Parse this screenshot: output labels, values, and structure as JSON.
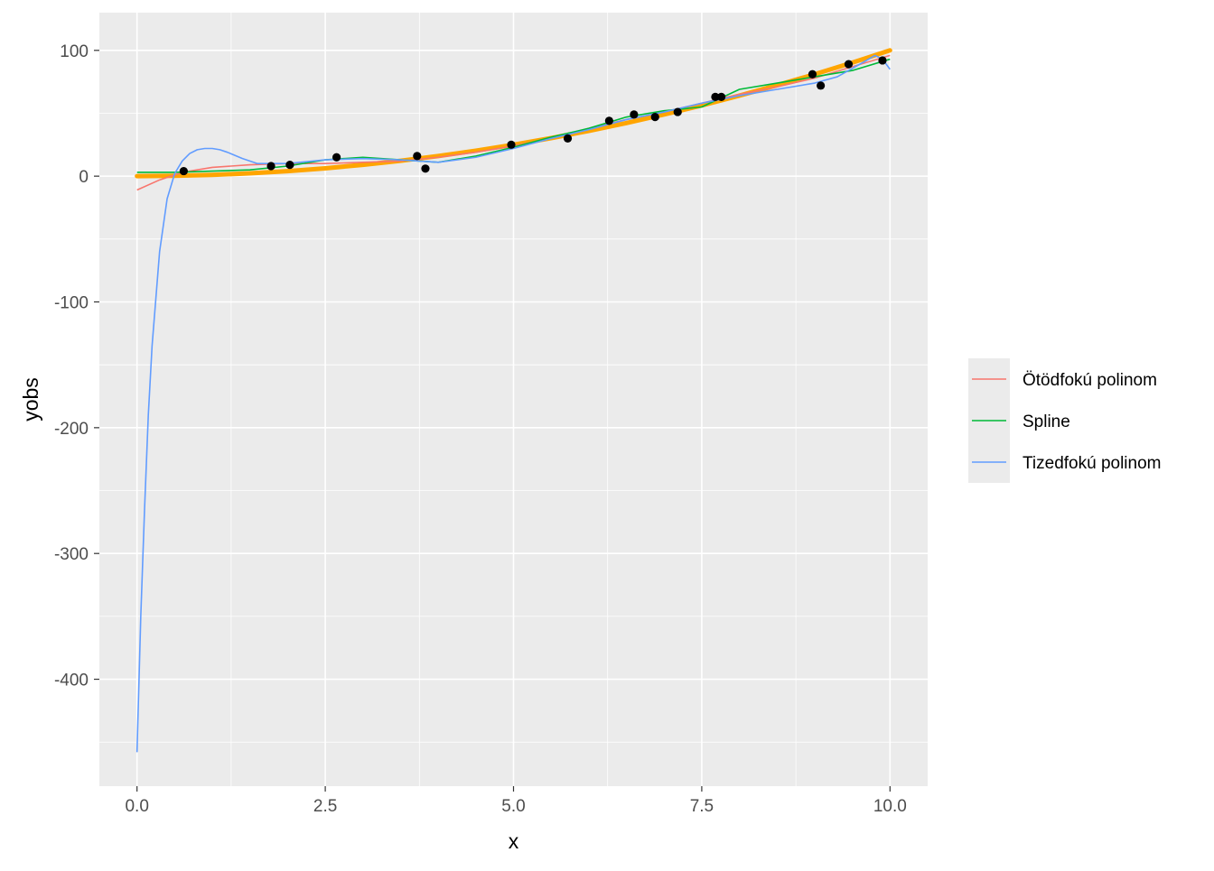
{
  "chart_data": {
    "type": "line",
    "title": "",
    "xlabel": "x",
    "ylabel": "yobs",
    "xlim": [
      -0.5,
      10.5
    ],
    "ylim": [
      -485,
      130
    ],
    "x_ticks": [
      0,
      2.5,
      5,
      7.5,
      10
    ],
    "x_tick_labels": [
      "0.0",
      "2.5",
      "5.0",
      "7.5",
      "10.0"
    ],
    "y_ticks": [
      100,
      0,
      -100,
      -200,
      -300,
      -400
    ],
    "y_tick_labels": [
      "100",
      "0",
      "-100",
      "-200",
      "-300",
      "-400"
    ],
    "grid": true,
    "panel_background": "#EBEBEB",
    "legend": {
      "position": "right",
      "entries": [
        "Ötödfokú polinom",
        "Spline",
        "Tizedfokú polinom"
      ]
    },
    "points": {
      "name": "yobs",
      "color": "#000000",
      "x": [
        0.62,
        1.78,
        2.03,
        2.65,
        3.72,
        3.83,
        4.97,
        5.72,
        6.27,
        6.6,
        6.88,
        7.18,
        7.68,
        7.76,
        8.97,
        9.08,
        9.45,
        9.9
      ],
      "y": [
        4,
        8,
        9,
        15,
        16,
        6,
        25,
        30,
        44,
        49,
        47,
        51,
        63,
        63,
        81,
        72,
        89,
        92
      ]
    },
    "true_curve": {
      "color": "#FFA500",
      "x": [
        0,
        0.5,
        1,
        1.5,
        2,
        2.5,
        3,
        3.5,
        4,
        4.5,
        5,
        5.5,
        6,
        6.5,
        7,
        7.5,
        8,
        8.5,
        9,
        9.5,
        10
      ],
      "y": [
        0,
        0.25,
        1,
        2.25,
        4,
        6.25,
        9,
        12.25,
        16,
        20.25,
        25,
        30.25,
        36,
        42.25,
        49,
        56.25,
        64,
        72.25,
        81,
        90.25,
        100
      ]
    },
    "series": [
      {
        "name": "Ötödfokú polinom",
        "color": "#F8766D",
        "x": [
          0,
          0.3,
          0.6,
          1,
          1.5,
          2,
          2.5,
          3,
          3.5,
          4,
          4.5,
          5,
          5.5,
          6,
          6.5,
          7,
          7.5,
          8,
          8.5,
          9,
          9.5,
          10
        ],
        "y": [
          -11,
          -3,
          3,
          7,
          9,
          10,
          10,
          11,
          12,
          15,
          19,
          24,
          30,
          38,
          45,
          51,
          58,
          65,
          71,
          78,
          87,
          96
        ]
      },
      {
        "name": "Spline",
        "color": "#00BA38",
        "x": [
          0,
          0.5,
          1,
          1.5,
          2,
          2.5,
          3,
          3.5,
          4,
          4.5,
          5,
          5.5,
          6,
          6.5,
          7,
          7.5,
          8,
          8.5,
          9,
          9.5,
          10
        ],
        "y": [
          3,
          3,
          4,
          5,
          8,
          13,
          15,
          13,
          11,
          16,
          23,
          31,
          38,
          47,
          52,
          55,
          69,
          74,
          79,
          84,
          93
        ]
      },
      {
        "name": "Tizedfokú polinom",
        "color": "#619CFF",
        "x": [
          0,
          0.05,
          0.1,
          0.15,
          0.2,
          0.3,
          0.4,
          0.5,
          0.6,
          0.7,
          0.8,
          0.9,
          1.0,
          1.1,
          1.2,
          1.4,
          1.6,
          2.0,
          2.5,
          3.0,
          3.5,
          4.0,
          4.5,
          5.0,
          5.5,
          6.0,
          6.5,
          7.0,
          7.5,
          8.0,
          8.5,
          9.0,
          9.3,
          9.6,
          9.8,
          9.9,
          10.0
        ],
        "y": [
          -458,
          -350,
          -265,
          -190,
          -135,
          -60,
          -18,
          2,
          12,
          18,
          21,
          22,
          22,
          21,
          19,
          14,
          10,
          10,
          13,
          14,
          13,
          11,
          15,
          22,
          30,
          37,
          45,
          51,
          58,
          64,
          69,
          74,
          79,
          89,
          96,
          93,
          85
        ]
      }
    ]
  }
}
